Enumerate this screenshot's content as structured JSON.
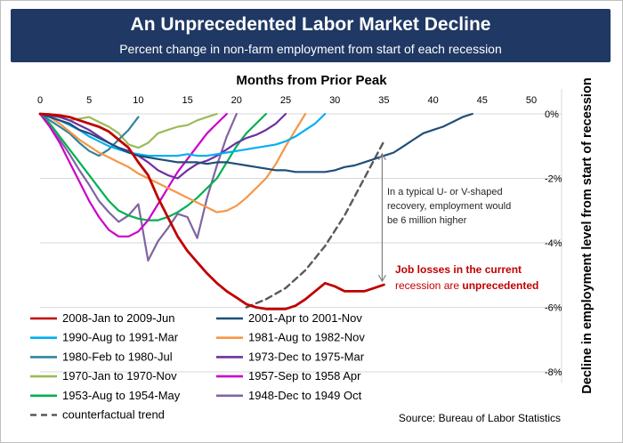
{
  "header": {
    "title": "An Unprecedented Labor Market Decline",
    "subtitle": "Percent change in non-farm employment from start of  each recession"
  },
  "chart_data": {
    "type": "line",
    "title": "An Unprecedented Labor Market Decline",
    "subtitle": "Percent change in non-farm employment from start of  each recession",
    "xlabel": "Months from Prior Peak",
    "ylabel": "Decline in employment level from start of recession",
    "xlim": [
      0,
      50
    ],
    "ylim": [
      -8,
      0
    ],
    "x_ticks": [
      0,
      5,
      10,
      15,
      20,
      25,
      30,
      35,
      40,
      45,
      50
    ],
    "y_ticks": [
      0,
      -2,
      -4,
      -6,
      -8
    ],
    "y_tick_labels": [
      "0%",
      "-2%",
      "-4%",
      "-6%",
      "-8%"
    ],
    "series": [
      {
        "name": "2008-Jan to 2009-Jun",
        "color": "#c00000",
        "width": 2.8,
        "dash": false,
        "x": [
          0,
          1,
          2,
          3,
          4,
          5,
          6,
          7,
          8,
          9,
          10,
          11,
          12,
          13,
          14,
          15,
          16,
          17,
          18,
          19,
          20,
          21,
          22,
          23,
          24,
          25,
          26,
          27,
          28,
          29,
          30,
          31,
          32,
          33,
          34,
          35
        ],
        "y": [
          0,
          -0.02,
          -0.05,
          -0.1,
          -0.2,
          -0.3,
          -0.4,
          -0.55,
          -0.8,
          -1.05,
          -1.5,
          -1.9,
          -2.6,
          -3.2,
          -3.8,
          -4.25,
          -4.6,
          -4.95,
          -5.25,
          -5.5,
          -5.7,
          -5.9,
          -6.0,
          -6.05,
          -6.05,
          -6.05,
          -5.95,
          -5.75,
          -5.5,
          -5.25,
          -5.35,
          -5.5,
          -5.5,
          -5.5,
          -5.4,
          -5.3
        ]
      },
      {
        "name": "2001-Apr to 2001-Nov",
        "color": "#1f4e79",
        "width": 2.2,
        "dash": false,
        "x": [
          0,
          1,
          2,
          3,
          4,
          5,
          6,
          7,
          8,
          9,
          10,
          11,
          12,
          13,
          14,
          15,
          16,
          17,
          18,
          19,
          20,
          21,
          22,
          23,
          24,
          25,
          26,
          27,
          28,
          29,
          30,
          31,
          32,
          33,
          34,
          35,
          36,
          37,
          38,
          39,
          40,
          41,
          42,
          43,
          44
        ],
        "y": [
          0,
          -0.1,
          -0.2,
          -0.3,
          -0.5,
          -0.6,
          -0.75,
          -0.9,
          -1.05,
          -1.2,
          -1.3,
          -1.35,
          -1.4,
          -1.45,
          -1.5,
          -1.5,
          -1.5,
          -1.55,
          -1.5,
          -1.5,
          -1.55,
          -1.6,
          -1.65,
          -1.7,
          -1.75,
          -1.75,
          -1.8,
          -1.8,
          -1.8,
          -1.8,
          -1.75,
          -1.65,
          -1.6,
          -1.5,
          -1.4,
          -1.3,
          -1.2,
          -1.0,
          -0.8,
          -0.6,
          -0.5,
          -0.4,
          -0.25,
          -0.1,
          0
        ]
      },
      {
        "name": "1990-Aug to 1991-Mar",
        "color": "#00b0f0",
        "width": 2.2,
        "dash": false,
        "x": [
          0,
          1,
          2,
          3,
          4,
          5,
          6,
          7,
          8,
          9,
          10,
          11,
          12,
          13,
          14,
          15,
          16,
          17,
          18,
          19,
          20,
          21,
          22,
          23,
          24,
          25,
          26,
          27,
          28,
          29
        ],
        "y": [
          0,
          -0.1,
          -0.2,
          -0.35,
          -0.5,
          -0.7,
          -0.85,
          -1.0,
          -1.1,
          -1.2,
          -1.25,
          -1.3,
          -1.3,
          -1.3,
          -1.3,
          -1.25,
          -1.3,
          -1.3,
          -1.25,
          -1.2,
          -1.15,
          -1.1,
          -1.05,
          -1.0,
          -0.95,
          -0.85,
          -0.7,
          -0.5,
          -0.3,
          0
        ]
      },
      {
        "name": "1981-Aug to 1982-Nov",
        "color": "#f79646",
        "width": 2.2,
        "dash": false,
        "x": [
          0,
          1,
          2,
          3,
          4,
          5,
          6,
          7,
          8,
          9,
          10,
          11,
          12,
          13,
          14,
          15,
          16,
          17,
          18,
          19,
          20,
          21,
          22,
          23,
          24,
          25,
          26,
          27
        ],
        "y": [
          0,
          -0.1,
          -0.3,
          -0.55,
          -0.8,
          -1.0,
          -1.2,
          -1.35,
          -1.5,
          -1.65,
          -1.85,
          -2.0,
          -2.15,
          -2.3,
          -2.45,
          -2.6,
          -2.75,
          -2.9,
          -3.05,
          -3.0,
          -2.85,
          -2.6,
          -2.3,
          -2.0,
          -1.55,
          -1.0,
          -0.5,
          0
        ]
      },
      {
        "name": "1980-Feb to 1980-Jul",
        "color": "#31849b",
        "width": 2.2,
        "dash": false,
        "x": [
          0,
          1,
          2,
          3,
          4,
          5,
          6,
          7,
          8,
          9,
          10
        ],
        "y": [
          0,
          -0.2,
          -0.4,
          -0.6,
          -0.9,
          -1.15,
          -1.3,
          -1.1,
          -0.8,
          -0.5,
          -0.1
        ]
      },
      {
        "name": "1973-Dec to 1975-Mar",
        "color": "#7030a0",
        "width": 2.2,
        "dash": false,
        "x": [
          0,
          1,
          2,
          3,
          4,
          5,
          6,
          7,
          8,
          9,
          10,
          11,
          12,
          13,
          14,
          15,
          16,
          17,
          18,
          19,
          20,
          21,
          22,
          23,
          24,
          25
        ],
        "y": [
          0,
          -0.05,
          -0.1,
          -0.2,
          -0.35,
          -0.5,
          -0.7,
          -0.9,
          -1.05,
          -1.15,
          -1.3,
          -1.5,
          -1.75,
          -1.9,
          -2.0,
          -1.75,
          -1.55,
          -1.45,
          -1.3,
          -1.1,
          -0.9,
          -0.75,
          -0.65,
          -0.5,
          -0.3,
          0
        ]
      },
      {
        "name": "1970-Jan to 1970-Nov",
        "color": "#9bbb59",
        "width": 2.2,
        "dash": false,
        "x": [
          0,
          1,
          2,
          3,
          4,
          5,
          6,
          7,
          8,
          9,
          10,
          11,
          12,
          13,
          14,
          15,
          16,
          17,
          18
        ],
        "y": [
          0,
          -0.05,
          -0.1,
          -0.2,
          -0.15,
          -0.1,
          -0.25,
          -0.4,
          -0.6,
          -0.95,
          -1.05,
          -0.9,
          -0.6,
          -0.5,
          -0.4,
          -0.35,
          -0.2,
          -0.1,
          0
        ]
      },
      {
        "name": "1957-Sep to 1958 Apr",
        "color": "#cc00cc",
        "width": 2.2,
        "dash": false,
        "x": [
          0,
          1,
          2,
          3,
          4,
          5,
          6,
          7,
          8,
          9,
          10,
          11,
          12,
          13,
          14,
          15,
          16,
          17,
          18,
          19
        ],
        "y": [
          0,
          -0.4,
          -0.9,
          -1.5,
          -2.1,
          -2.7,
          -3.2,
          -3.6,
          -3.8,
          -3.8,
          -3.65,
          -3.3,
          -2.8,
          -2.3,
          -1.8,
          -1.4,
          -1.0,
          -0.6,
          -0.3,
          0
        ]
      },
      {
        "name": "1953-Aug to 1954-May",
        "color": "#00b050",
        "width": 2.2,
        "dash": false,
        "x": [
          0,
          1,
          2,
          3,
          4,
          5,
          6,
          7,
          8,
          9,
          10,
          11,
          12,
          13,
          14,
          15,
          16,
          17,
          18,
          19,
          20,
          21,
          22,
          23
        ],
        "y": [
          0,
          -0.3,
          -0.7,
          -1.1,
          -1.5,
          -1.9,
          -2.3,
          -2.7,
          -3.0,
          -3.15,
          -3.25,
          -3.3,
          -3.3,
          -3.2,
          -3.05,
          -2.85,
          -2.6,
          -2.3,
          -2.0,
          -1.5,
          -1.0,
          -0.6,
          -0.3,
          0
        ]
      },
      {
        "name": "1948-Dec to 1949 Oct",
        "color": "#8064a2",
        "width": 2.2,
        "dash": false,
        "x": [
          0,
          1,
          2,
          3,
          4,
          5,
          6,
          7,
          8,
          9,
          10,
          11,
          12,
          13,
          14,
          15,
          16,
          17,
          18,
          19,
          20
        ],
        "y": [
          0,
          -0.4,
          -0.8,
          -1.25,
          -1.75,
          -2.2,
          -2.7,
          -3.05,
          -3.35,
          -3.15,
          -2.8,
          -4.55,
          -3.95,
          -3.55,
          -3.1,
          -3.2,
          -3.85,
          -2.6,
          -1.6,
          -0.7,
          0
        ]
      },
      {
        "name": "counterfactual trend",
        "color": "#595959",
        "width": 2.4,
        "dash": true,
        "x": [
          21,
          23,
          25,
          27,
          29,
          31,
          33,
          35
        ],
        "y": [
          -6.0,
          -5.75,
          -5.4,
          -4.85,
          -4.1,
          -3.15,
          -2.0,
          -0.85
        ]
      }
    ],
    "legend": {
      "placement": "bottom-left",
      "columns": 2
    },
    "annotations": [
      {
        "text": "In a typical U- or V-shaped recovery, employment would be 6 million higher",
        "lines": [
          "In a typical U- or V-shaped",
          "recovery, employment would",
          "be 6 million higher"
        ],
        "color": "#262626"
      },
      {
        "text": "Job losses in the current recession are unprecedented",
        "line1": "Job losses in the current",
        "line2_prefix": "recession are ",
        "line2_bold": "unprecedented",
        "color": "#c00000"
      }
    ],
    "arrow": {
      "x": 35,
      "y_from": -0.85,
      "y_to": -5.3
    },
    "source": "Source: Bureau of Labor Statistics"
  }
}
